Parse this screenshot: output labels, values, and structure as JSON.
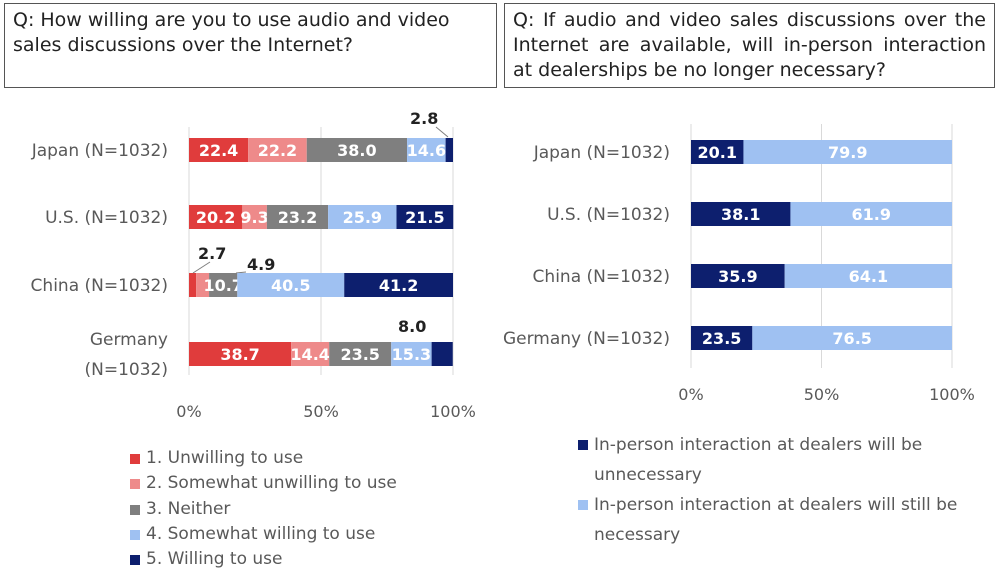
{
  "questions": {
    "left": "Q: How willing are you to use audio and video sales discussions over the Internet?",
    "right": "Q: If audio and video sales discussions over the Internet are available, will in-person interaction at dealerships be no longer necessary?"
  },
  "chart_data": [
    {
      "type": "bar",
      "orientation": "horizontal",
      "stacked": true,
      "categories": [
        "Japan (N=1032)",
        "U.S. (N=1032)",
        "China (N=1032)",
        "Germany (N=1032)"
      ],
      "category_lines": [
        [
          "Japan (N=1032)"
        ],
        [
          "U.S. (N=1032)"
        ],
        [
          "China (N=1032)"
        ],
        [
          "Germany",
          "(N=1032)"
        ]
      ],
      "series": [
        {
          "name": "1. Unwilling to use",
          "color": "#e03c3c",
          "values": [
            22.4,
            20.2,
            2.7,
            38.7
          ]
        },
        {
          "name": "2. Somewhat unwilling to use",
          "color": "#ee8a8a",
          "values": [
            22.2,
            9.3,
            4.9,
            14.4
          ]
        },
        {
          "name": "3. Neither",
          "color": "#7f7f7f",
          "values": [
            38.0,
            23.2,
            10.7,
            23.5
          ]
        },
        {
          "name": "4. Somewhat willing to use",
          "color": "#9fc1f2",
          "values": [
            14.6,
            25.9,
            40.5,
            15.3
          ]
        },
        {
          "name": "5. Willing to use",
          "color": "#0d1f6e",
          "values": [
            2.8,
            21.5,
            41.2,
            8.0
          ]
        }
      ],
      "x_ticks": [
        "0%",
        "50%",
        "100%"
      ],
      "xlim": [
        0,
        100
      ],
      "legend_position": "bottom"
    },
    {
      "type": "bar",
      "orientation": "horizontal",
      "stacked": true,
      "categories": [
        "Japan (N=1032)",
        "U.S. (N=1032)",
        "China (N=1032)",
        "Germany (N=1032)"
      ],
      "series": [
        {
          "name": "In-person interaction at dealers will be unnecessary",
          "name_lines": [
            "In-person interaction at dealers will be",
            "unnecessary"
          ],
          "color": "#0d1f6e",
          "values": [
            20.1,
            38.1,
            35.9,
            23.5
          ]
        },
        {
          "name": "In-person interaction at dealers will still be necessary",
          "name_lines": [
            "In-person interaction at dealers will still be",
            "necessary"
          ],
          "color": "#9fc1f2",
          "values": [
            79.9,
            61.9,
            64.1,
            76.5
          ]
        }
      ],
      "x_ticks": [
        "0%",
        "50%",
        "100%"
      ],
      "xlim": [
        0,
        100
      ],
      "legend_position": "bottom"
    }
  ]
}
